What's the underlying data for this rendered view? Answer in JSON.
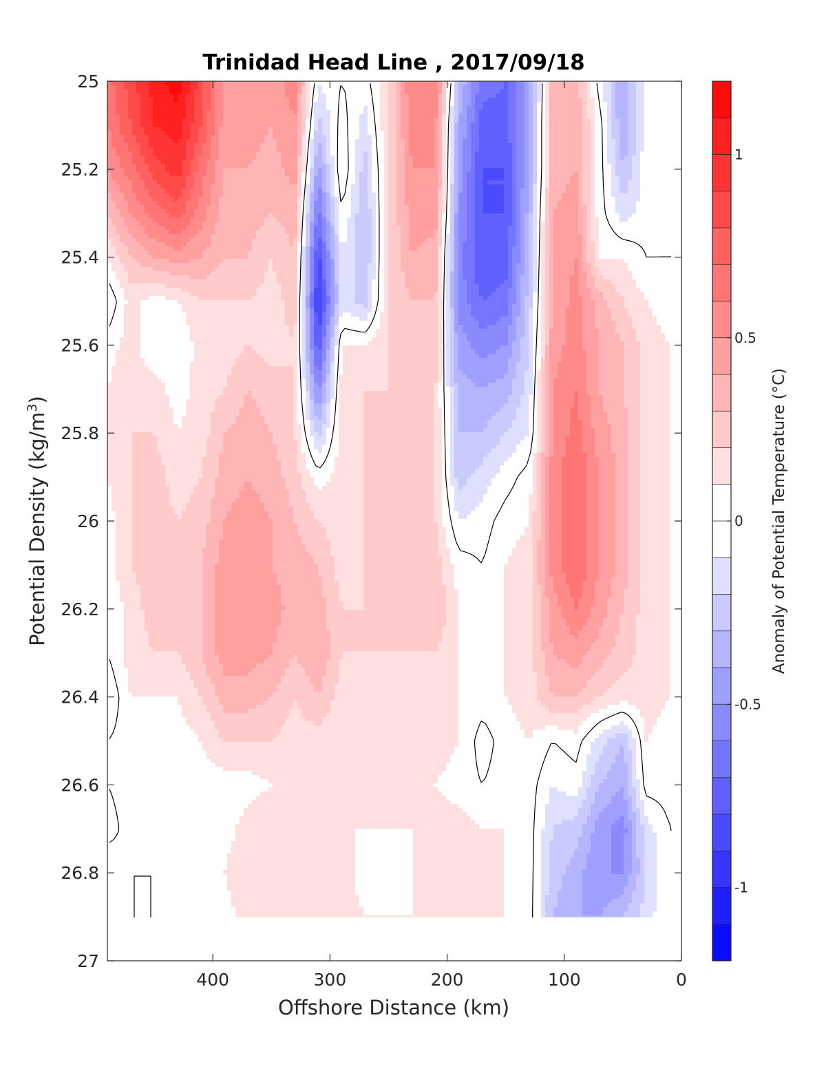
{
  "chart_data": {
    "type": "heatmap",
    "subtype": "filled-contour",
    "title": "Trinidad Head Line , 2017/09/18",
    "xlabel": "Offshore Distance (km)",
    "ylabel": "Potential Density (kg/m",
    "ylabel_sup": "3",
    "ylabel_close": ")",
    "colorbar_label": "Anomaly of Potential Temperature (°C)",
    "x_reversed": true,
    "y_reversed": true,
    "xlim": [
      0,
      490
    ],
    "ylim": [
      25,
      27
    ],
    "x_ticks": [
      400,
      300,
      200,
      100,
      0
    ],
    "y_ticks": [
      25,
      25.2,
      25.4,
      25.6,
      25.8,
      26,
      26.2,
      26.4,
      26.6,
      26.8,
      27
    ],
    "y_tick_labels": [
      "25",
      "25.2",
      "25.4",
      "25.6",
      "25.8",
      "26",
      "26.2",
      "26.4",
      "26.6",
      "26.8",
      "27"
    ],
    "colorbar_ticks": [
      1,
      0.5,
      0,
      -0.5,
      -1
    ],
    "colorbar_tick_labels": [
      "1",
      "0.5",
      "0",
      "-0.5",
      "-1"
    ],
    "color_range": [
      -1.2,
      1.2
    ],
    "color_levels": 24,
    "colormap": "blue-white-red",
    "grid": false,
    "data_y_max": 26.9,
    "x": [
      490,
      470,
      450,
      430,
      410,
      390,
      370,
      350,
      330,
      310,
      290,
      270,
      250,
      230,
      210,
      190,
      170,
      150,
      130,
      110,
      90,
      70,
      50,
      30,
      10
    ],
    "y": [
      25.0,
      25.1,
      25.2,
      25.3,
      25.4,
      25.5,
      25.6,
      25.7,
      25.8,
      25.9,
      26.0,
      26.1,
      26.2,
      26.3,
      26.4,
      26.5,
      26.6,
      26.7,
      26.8,
      26.9
    ],
    "z": [
      [
        0.65,
        0.85,
        1.05,
        1.15,
        0.85,
        0.45,
        0.45,
        0.45,
        0.55,
        -0.1,
        0.0,
        -0.05,
        0.2,
        0.6,
        0.6,
        -0.3,
        -0.65,
        -0.7,
        -0.45,
        0.35,
        0.35,
        -0.05,
        -0.4,
        -0.05,
        0.0
      ],
      [
        0.6,
        0.8,
        1.0,
        1.05,
        0.8,
        0.45,
        0.45,
        0.4,
        0.5,
        -0.25,
        0.05,
        -0.15,
        0.2,
        0.55,
        0.5,
        -0.4,
        -0.75,
        -0.75,
        -0.4,
        0.35,
        0.4,
        0.05,
        -0.4,
        -0.05,
        0.0
      ],
      [
        0.5,
        0.65,
        0.85,
        0.95,
        0.65,
        0.4,
        0.4,
        0.35,
        0.45,
        -0.45,
        0.1,
        -0.25,
        0.2,
        0.5,
        0.5,
        -0.45,
        -0.8,
        -0.8,
        -0.4,
        0.35,
        0.4,
        0.05,
        -0.3,
        -0.05,
        0.0
      ],
      [
        0.3,
        0.5,
        0.65,
        0.75,
        0.55,
        0.35,
        0.35,
        0.3,
        0.35,
        -0.65,
        0.0,
        -0.3,
        0.2,
        0.45,
        0.45,
        -0.5,
        -0.8,
        -0.8,
        -0.35,
        0.4,
        0.45,
        0.05,
        -0.15,
        -0.05,
        0.0
      ],
      [
        0.1,
        0.3,
        0.4,
        0.45,
        0.4,
        0.3,
        0.3,
        0.2,
        0.3,
        -0.85,
        -0.1,
        -0.3,
        0.2,
        0.4,
        0.35,
        -0.55,
        -0.8,
        -0.75,
        -0.3,
        0.4,
        0.5,
        0.1,
        0.1,
        0.0,
        0.0
      ],
      [
        -0.1,
        0.15,
        0.05,
        0.1,
        0.2,
        0.2,
        0.2,
        0.15,
        0.25,
        -0.95,
        -0.15,
        -0.25,
        0.2,
        0.3,
        0.3,
        -0.55,
        -0.7,
        -0.65,
        -0.25,
        0.4,
        0.55,
        0.35,
        0.2,
        0.1,
        0.05
      ],
      [
        0.05,
        0.15,
        0.0,
        0.0,
        0.15,
        0.15,
        0.2,
        0.15,
        0.2,
        -0.8,
        0.1,
        0.1,
        0.2,
        0.25,
        0.25,
        -0.45,
        -0.55,
        -0.5,
        -0.2,
        0.45,
        0.55,
        0.4,
        0.3,
        0.15,
        0.1
      ],
      [
        0.1,
        0.2,
        0.15,
        0.05,
        0.15,
        0.2,
        0.3,
        0.25,
        0.2,
        -0.55,
        0.15,
        0.2,
        0.2,
        0.2,
        0.2,
        -0.35,
        -0.4,
        -0.35,
        -0.15,
        0.5,
        0.6,
        0.4,
        0.3,
        0.15,
        0.1
      ],
      [
        0.1,
        0.2,
        0.2,
        0.1,
        0.15,
        0.3,
        0.35,
        0.3,
        0.2,
        -0.25,
        0.15,
        0.2,
        0.25,
        0.2,
        0.2,
        -0.3,
        -0.3,
        -0.2,
        -0.1,
        0.5,
        0.65,
        0.45,
        0.35,
        0.15,
        0.1
      ],
      [
        0.1,
        0.2,
        0.25,
        0.15,
        0.2,
        0.35,
        0.4,
        0.35,
        0.25,
        0.05,
        0.15,
        0.2,
        0.25,
        0.2,
        0.2,
        -0.25,
        -0.15,
        -0.05,
        0.05,
        0.55,
        0.7,
        0.5,
        0.35,
        0.15,
        0.1
      ],
      [
        0.05,
        0.2,
        0.25,
        0.2,
        0.25,
        0.4,
        0.45,
        0.4,
        0.3,
        0.2,
        0.15,
        0.2,
        0.25,
        0.25,
        0.2,
        -0.1,
        -0.05,
        0.05,
        0.1,
        0.55,
        0.7,
        0.5,
        0.35,
        0.15,
        0.1
      ],
      [
        0.05,
        0.2,
        0.25,
        0.2,
        0.3,
        0.45,
        0.5,
        0.4,
        0.35,
        0.3,
        0.15,
        0.2,
        0.2,
        0.25,
        0.25,
        0.05,
        0.0,
        0.1,
        0.15,
        0.55,
        0.7,
        0.5,
        0.35,
        0.15,
        0.1
      ],
      [
        0.0,
        0.15,
        0.25,
        0.2,
        0.3,
        0.5,
        0.5,
        0.45,
        0.35,
        0.35,
        0.2,
        0.2,
        0.2,
        0.25,
        0.3,
        0.1,
        0.05,
        0.1,
        0.15,
        0.45,
        0.6,
        0.45,
        0.3,
        0.15,
        0.1
      ],
      [
        0.0,
        0.15,
        0.2,
        0.2,
        0.3,
        0.45,
        0.45,
        0.4,
        0.3,
        0.4,
        0.2,
        0.2,
        0.2,
        0.2,
        0.2,
        0.1,
        0.05,
        0.1,
        0.15,
        0.4,
        0.45,
        0.35,
        0.25,
        0.15,
        0.1
      ],
      [
        -0.1,
        0.1,
        0.1,
        0.1,
        0.2,
        0.35,
        0.35,
        0.3,
        0.2,
        0.3,
        0.15,
        0.15,
        0.15,
        0.15,
        0.15,
        0.1,
        0.05,
        0.1,
        0.15,
        0.3,
        0.3,
        0.2,
        0.15,
        0.15,
        0.1
      ],
      [
        0.0,
        0.05,
        0.05,
        0.05,
        0.1,
        0.2,
        0.2,
        0.2,
        0.15,
        0.15,
        0.1,
        0.1,
        0.1,
        0.15,
        0.15,
        0.1,
        -0.05,
        0.05,
        0.1,
        0.0,
        0.05,
        -0.15,
        -0.3,
        0.1,
        0.05
      ],
      [
        0.0,
        0.05,
        0.0,
        0.05,
        0.05,
        0.05,
        0.05,
        0.1,
        0.15,
        0.1,
        0.1,
        0.1,
        0.1,
        0.15,
        0.1,
        0.05,
        0.0,
        0.05,
        0.05,
        -0.1,
        -0.05,
        -0.3,
        -0.4,
        0.05,
        0.05
      ],
      [
        -0.05,
        0.05,
        0.0,
        0.05,
        0.0,
        0.05,
        0.15,
        0.2,
        0.2,
        0.2,
        0.1,
        0.1,
        0.1,
        0.1,
        0.15,
        0.15,
        0.1,
        0.1,
        0.05,
        -0.2,
        -0.25,
        -0.45,
        -0.55,
        -0.15,
        0.0
      ],
      [
        0.1,
        0.0,
        0.0,
        0.05,
        0.0,
        0.1,
        0.2,
        0.2,
        0.15,
        0.15,
        0.15,
        0.05,
        0.05,
        0.1,
        0.1,
        0.1,
        0.1,
        0.1,
        0.05,
        -0.25,
        -0.35,
        -0.5,
        -0.5,
        -0.2,
        0.0
      ],
      [
        0.1,
        0.0,
        0.0,
        0.05,
        0.0,
        0.05,
        0.15,
        0.15,
        0.15,
        0.15,
        0.15,
        0.1,
        0.1,
        0.1,
        0.1,
        0.15,
        0.15,
        0.1,
        0.05,
        -0.3,
        -0.4,
        -0.4,
        -0.3,
        -0.15,
        0.0
      ]
    ]
  }
}
